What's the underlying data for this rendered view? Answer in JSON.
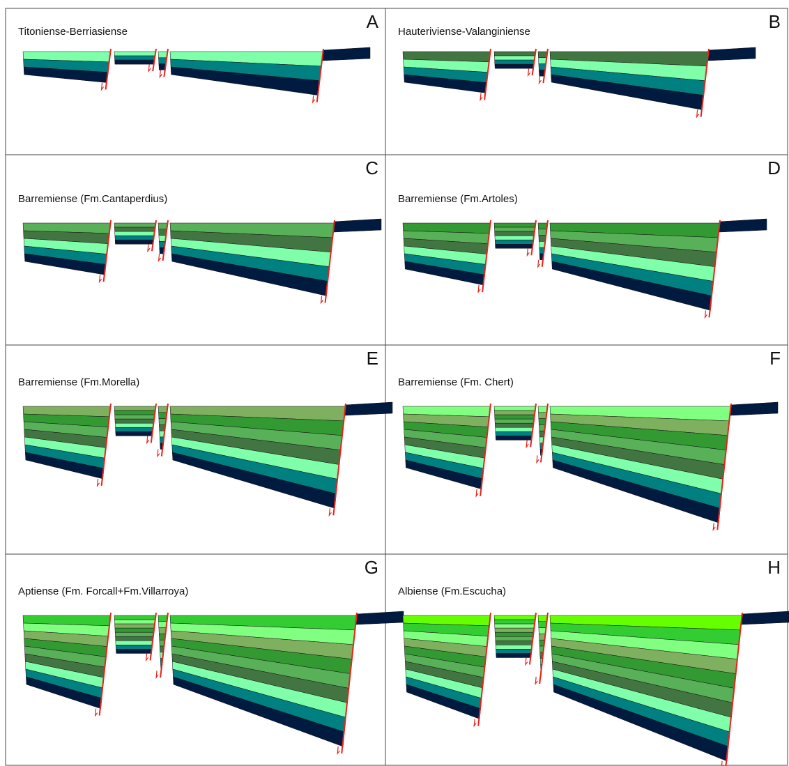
{
  "panels": [
    {
      "label": "A",
      "title": "Titoniense-Berriasiense"
    },
    {
      "label": "B",
      "title": "Hauteriviense-Valanginiense"
    },
    {
      "label": "C",
      "title": "Barremiense (Fm.Cantaperdius)"
    },
    {
      "label": "D",
      "title": "Barremiense (Fm.Artoles)"
    },
    {
      "label": "E",
      "title": "Barremiense (Fm.Morella)"
    },
    {
      "label": "F",
      "title": "Barremiense (Fm. Chert)"
    },
    {
      "label": "G",
      "title": "Aptiense (Fm. Forcall+Fm.Villarroya)"
    },
    {
      "label": "H",
      "title": "Albiense (Fm.Escucha)"
    }
  ]
}
